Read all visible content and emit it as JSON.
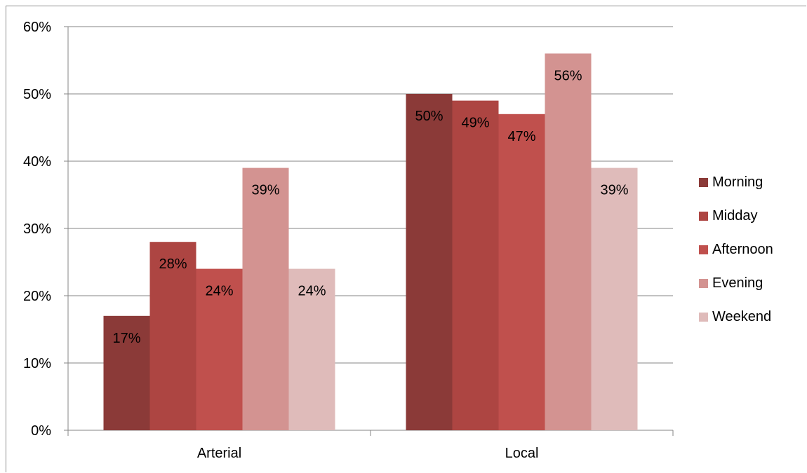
{
  "chart_data": {
    "type": "bar",
    "categories": [
      "Arterial",
      "Local"
    ],
    "series": [
      {
        "name": "Morning",
        "values": [
          17,
          50
        ],
        "color": "#8b3a38"
      },
      {
        "name": "Midday",
        "values": [
          28,
          49
        ],
        "color": "#ad4542"
      },
      {
        "name": "Afternoon",
        "values": [
          24,
          47
        ],
        "color": "#c0504d"
      },
      {
        "name": "Evening",
        "values": [
          39,
          56
        ],
        "color": "#d39391"
      },
      {
        "name": "Weekend",
        "values": [
          24,
          39
        ],
        "color": "#dfbbba"
      }
    ],
    "data_labels": [
      [
        "17%",
        "50%"
      ],
      [
        "28%",
        "49%"
      ],
      [
        "24%",
        "47%"
      ],
      [
        "39%",
        "56%"
      ],
      [
        "24%",
        "39%"
      ]
    ],
    "y_ticks": [
      "0%",
      "10%",
      "20%",
      "30%",
      "40%",
      "50%",
      "60%"
    ],
    "ylim": [
      0,
      60
    ],
    "grid": true,
    "legend_position": "right"
  }
}
